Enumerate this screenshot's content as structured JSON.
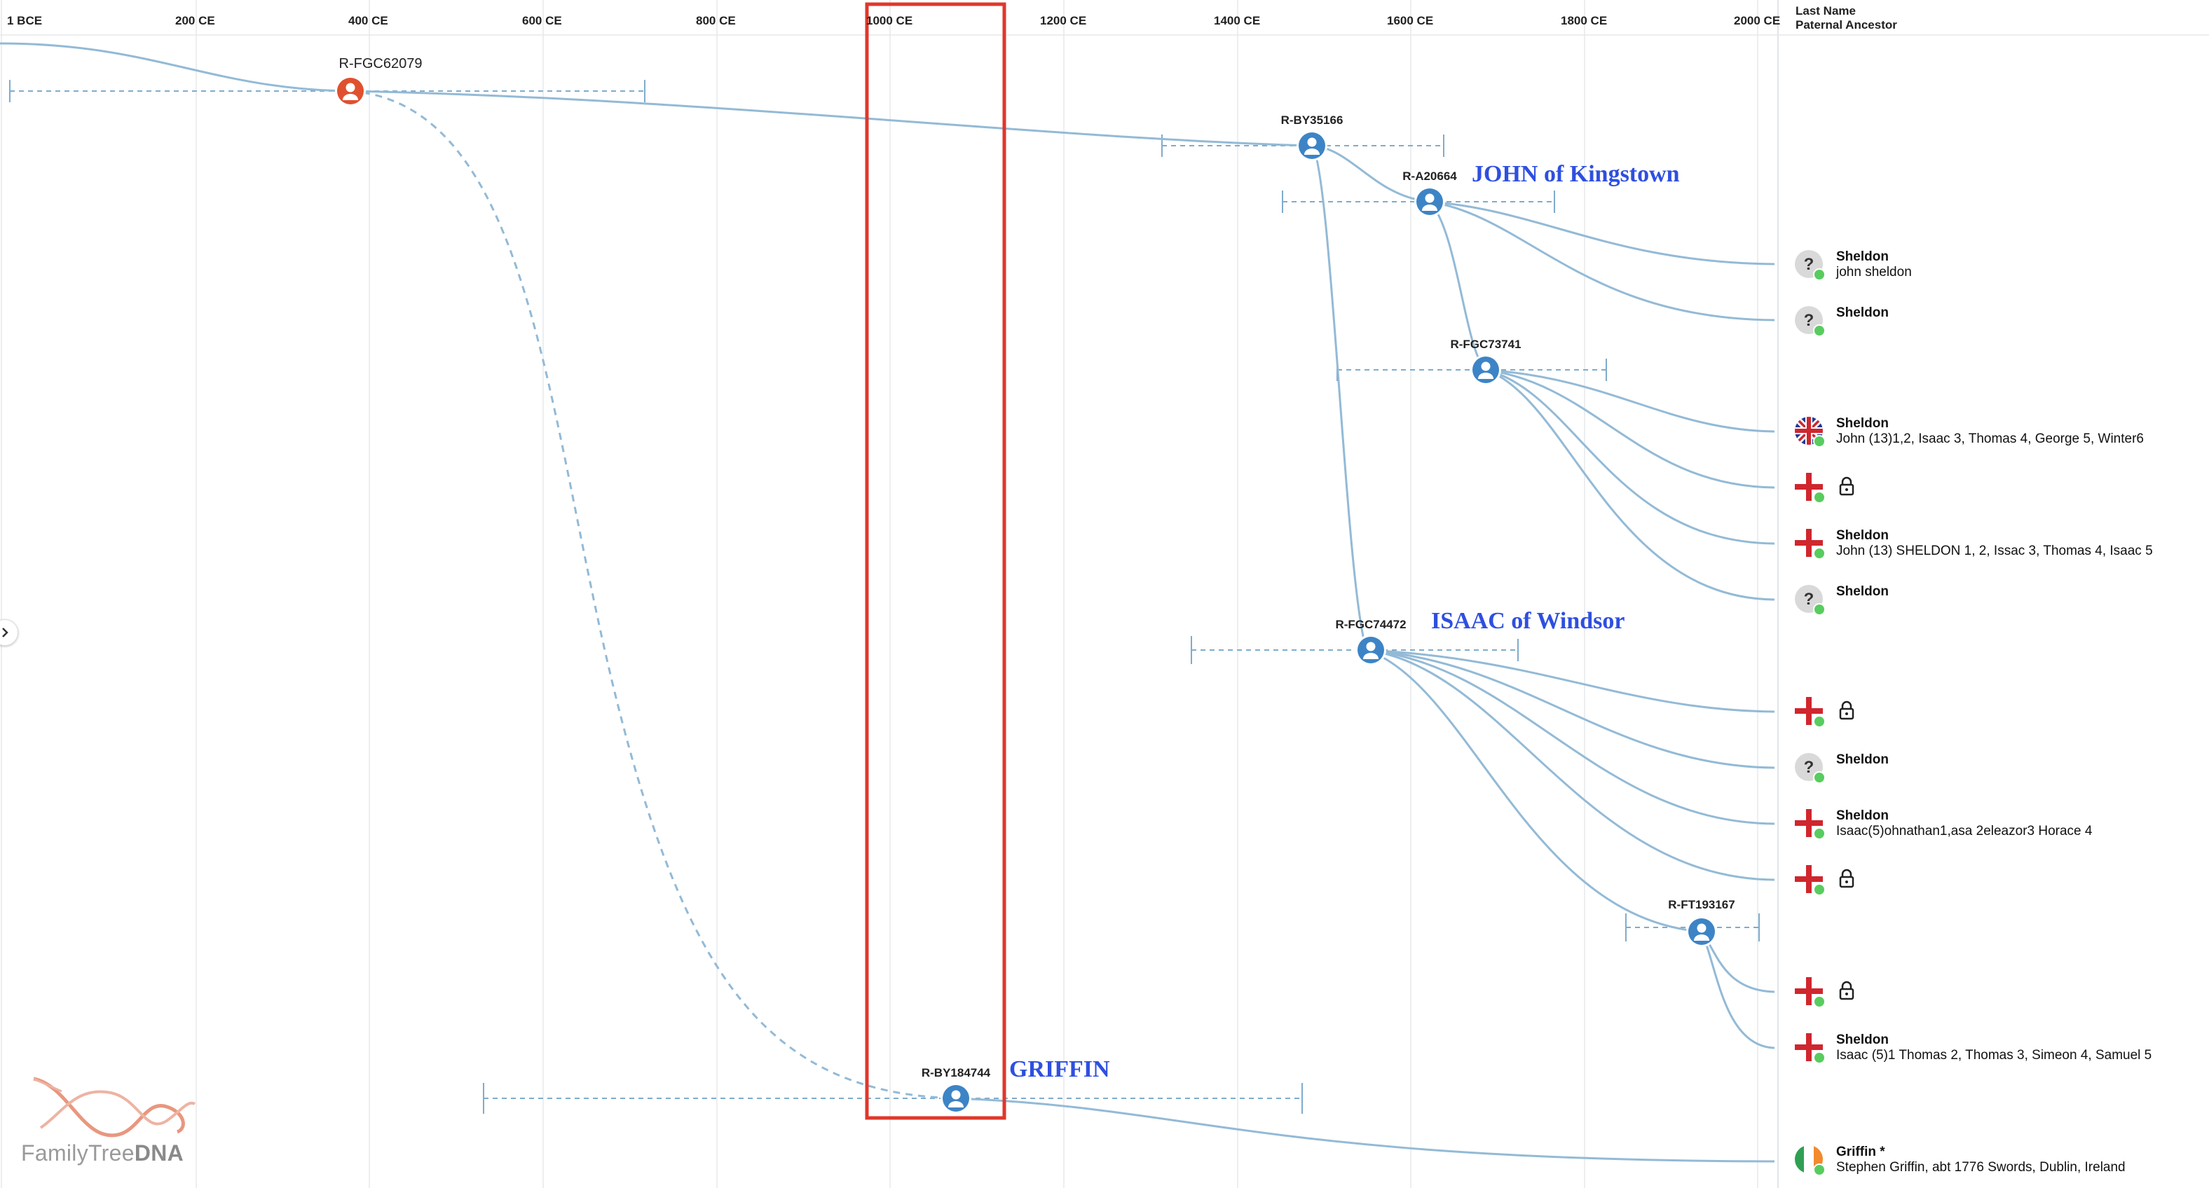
{
  "axis": {
    "ticks": [
      "1 BCE",
      "200 CE",
      "400 CE",
      "600 CE",
      "800 CE",
      "1000 CE",
      "1200 CE",
      "1400 CE",
      "1600 CE",
      "1800 CE",
      "2000 CE"
    ]
  },
  "header": {
    "col1": "Last Name",
    "col2": "Paternal Ancestor"
  },
  "nodes": {
    "root": "R-FGC62079",
    "by35166": "R-BY35166",
    "a20664": "R-A20664",
    "fgc73741": "R-FGC73741",
    "fgc74472": "R-FGC74472",
    "ft193167": "R-FT193167",
    "by184744": "R-BY184744"
  },
  "annotations": {
    "john": "JOHN of Kingstown",
    "isaac": "ISAAC of Windsor",
    "griffin": "GRIFFIN"
  },
  "rows": [
    {
      "flag": "unknown",
      "name": "Sheldon",
      "detail": "john sheldon",
      "locked": false
    },
    {
      "flag": "unknown",
      "name": "Sheldon",
      "detail": "",
      "locked": false
    },
    {
      "flag": "uk",
      "name": "Sheldon",
      "detail": "John (13)1,2, Isaac 3, Thomas 4, George 5, Winter6",
      "locked": false
    },
    {
      "flag": "england",
      "name": "",
      "detail": "",
      "locked": true
    },
    {
      "flag": "england",
      "name": "Sheldon",
      "detail": "John (13) SHELDON 1, 2, Issac 3, Thomas 4, Isaac 5",
      "locked": false
    },
    {
      "flag": "unknown",
      "name": "Sheldon",
      "detail": "",
      "locked": false
    },
    {
      "flag": "england",
      "name": "",
      "detail": "",
      "locked": true
    },
    {
      "flag": "unknown",
      "name": "Sheldon",
      "detail": "",
      "locked": false
    },
    {
      "flag": "england",
      "name": "Sheldon",
      "detail": "Isaac(5)ohnathan1,asa 2eleazor3 Horace 4",
      "locked": false
    },
    {
      "flag": "england",
      "name": "",
      "detail": "",
      "locked": true
    },
    {
      "flag": "england",
      "name": "",
      "detail": "",
      "locked": true
    },
    {
      "flag": "england",
      "name": "Sheldon",
      "detail": "Isaac (5)1 Thomas 2, Thomas 3, Simeon 4, Samuel 5",
      "locked": false
    },
    {
      "flag": "ireland",
      "name": "Griffin *",
      "detail": "Stephen Griffin, abt 1776 Swords, Dublin, Ireland",
      "locked": false
    }
  ],
  "logo": {
    "brand_light": "FamilyTree",
    "brand_bold": "DNA"
  },
  "colors": {
    "line": "#93bad6",
    "node": "#3d84c6",
    "root_node": "#e0502f",
    "highlight_box": "#e0372b",
    "annotation": "#2e4fe0",
    "status_dot": "#58cc5e"
  }
}
